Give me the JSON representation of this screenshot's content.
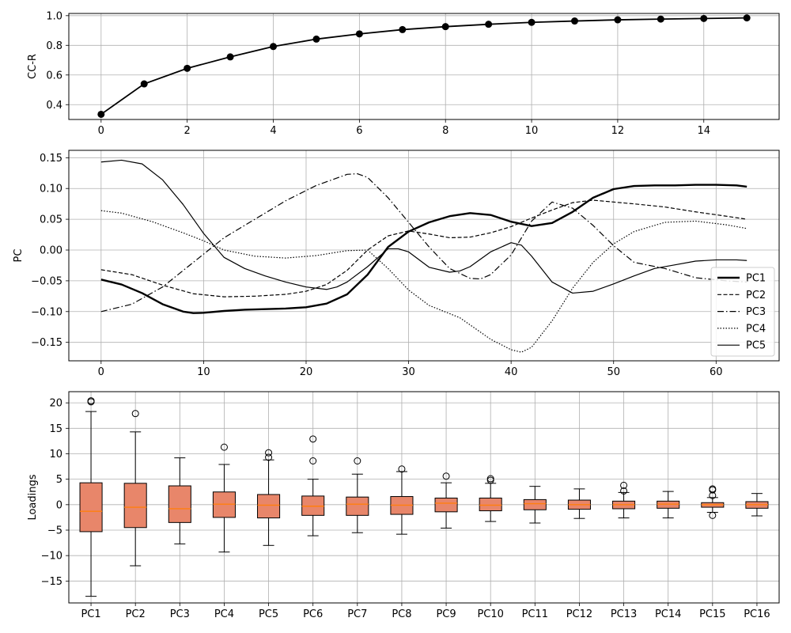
{
  "chart_data": [
    {
      "type": "line",
      "ylabel": "CC-R",
      "xlim": [
        -0.75,
        15.75
      ],
      "ylim": [
        0.3,
        1.015
      ],
      "xticks": [
        0,
        2,
        4,
        6,
        8,
        10,
        12,
        14
      ],
      "yticks": [
        0.4,
        0.6,
        0.8,
        1.0
      ],
      "ytick_labels": [
        "0.4",
        "0.6",
        "0.8",
        "1.0"
      ],
      "grid": true,
      "x": [
        0,
        1,
        2,
        3,
        4,
        5,
        6,
        7,
        8,
        9,
        10,
        11,
        12,
        13,
        14,
        15
      ],
      "y": [
        0.335,
        0.54,
        0.645,
        0.722,
        0.792,
        0.842,
        0.877,
        0.906,
        0.926,
        0.942,
        0.955,
        0.964,
        0.972,
        0.977,
        0.981,
        0.985
      ],
      "marker": "circle",
      "color": "#000000"
    },
    {
      "type": "line",
      "ylabel": "PC",
      "xlim": [
        -3.15,
        66.15
      ],
      "ylim": [
        -0.18,
        0.162
      ],
      "xticks": [
        0,
        10,
        20,
        30,
        40,
        50,
        60
      ],
      "yticks": [
        -0.15,
        -0.1,
        -0.05,
        0.0,
        0.05,
        0.1,
        0.15
      ],
      "ytick_labels": [
        "−0.15",
        "−0.10",
        "−0.05",
        "0.00",
        "0.05",
        "0.10",
        "0.15"
      ],
      "grid": true,
      "legend_position": "bottom-right",
      "series": [
        {
          "name": "PC1",
          "style": "solid",
          "width": 2.4,
          "x": [
            0,
            2,
            4,
            6,
            8,
            9,
            10,
            12,
            14,
            16,
            18,
            20,
            22,
            24,
            26,
            28,
            30,
            32,
            34,
            36,
            38,
            40,
            42,
            44,
            46,
            48,
            50,
            52,
            54,
            56,
            58,
            60,
            62,
            63
          ],
          "y": [
            -0.048,
            -0.056,
            -0.07,
            -0.088,
            -0.1,
            -0.1025,
            -0.102,
            -0.099,
            -0.097,
            -0.096,
            -0.095,
            -0.093,
            -0.087,
            -0.072,
            -0.04,
            0.005,
            0.03,
            0.045,
            0.055,
            0.06,
            0.057,
            0.046,
            0.039,
            0.044,
            0.062,
            0.085,
            0.099,
            0.104,
            0.105,
            0.105,
            0.106,
            0.106,
            0.105,
            0.103
          ]
        },
        {
          "name": "PC2",
          "style": "dashed",
          "width": 1.2,
          "x": [
            0,
            3,
            6,
            9,
            12,
            15,
            18,
            20,
            22,
            24,
            26,
            28,
            30,
            32,
            34,
            36,
            38,
            40,
            42,
            44,
            46,
            48,
            50,
            52,
            55,
            58,
            61,
            63
          ],
          "y": [
            -0.032,
            -0.04,
            -0.057,
            -0.071,
            -0.076,
            -0.075,
            -0.072,
            -0.067,
            -0.056,
            -0.033,
            0.0,
            0.023,
            0.031,
            0.026,
            0.02,
            0.021,
            0.028,
            0.038,
            0.052,
            0.065,
            0.077,
            0.081,
            0.078,
            0.075,
            0.07,
            0.062,
            0.055,
            0.05
          ]
        },
        {
          "name": "PC3",
          "style": "dashdot",
          "width": 1.2,
          "x": [
            0,
            3,
            6,
            9,
            12,
            15,
            18,
            21,
            24,
            25,
            26,
            28,
            30,
            32,
            34,
            36,
            37,
            38,
            40,
            42,
            44,
            46,
            48,
            50,
            52,
            55,
            58,
            61,
            63
          ],
          "y": [
            -0.1,
            -0.088,
            -0.06,
            -0.02,
            0.02,
            0.05,
            0.08,
            0.105,
            0.123,
            0.124,
            0.118,
            0.085,
            0.045,
            0.005,
            -0.03,
            -0.046,
            -0.047,
            -0.04,
            -0.008,
            0.047,
            0.078,
            0.068,
            0.04,
            0.007,
            -0.02,
            -0.03,
            -0.045,
            -0.05,
            -0.052
          ]
        },
        {
          "name": "PC4",
          "style": "dotted",
          "width": 1.2,
          "x": [
            0,
            2,
            5,
            8,
            10,
            12,
            15,
            18,
            21,
            24,
            26,
            28,
            30,
            32,
            35,
            38,
            40,
            41,
            42,
            44,
            46,
            48,
            50,
            52,
            55,
            58,
            61,
            63
          ],
          "y": [
            0.064,
            0.06,
            0.046,
            0.028,
            0.015,
            0.0,
            -0.01,
            -0.013,
            -0.009,
            -0.001,
            0.0,
            -0.03,
            -0.065,
            -0.09,
            -0.11,
            -0.145,
            -0.162,
            -0.166,
            -0.158,
            -0.115,
            -0.062,
            -0.02,
            0.01,
            0.03,
            0.045,
            0.047,
            0.041,
            0.035
          ]
        },
        {
          "name": "PC5",
          "style": "solid",
          "width": 1.2,
          "x": [
            0,
            2,
            4,
            6,
            8,
            10,
            12,
            14,
            16,
            18,
            20,
            22,
            23,
            24,
            26,
            28,
            29,
            30,
            32,
            34,
            35,
            36,
            38,
            40,
            41,
            42,
            44,
            46,
            48,
            50,
            52,
            54,
            56,
            58,
            60,
            62,
            63
          ],
          "y": [
            0.143,
            0.146,
            0.14,
            0.114,
            0.074,
            0.027,
            -0.012,
            -0.03,
            -0.042,
            -0.052,
            -0.06,
            -0.064,
            -0.06,
            -0.052,
            -0.027,
            0.002,
            0.002,
            -0.003,
            -0.028,
            -0.036,
            -0.034,
            -0.027,
            -0.003,
            0.012,
            0.008,
            -0.01,
            -0.052,
            -0.07,
            -0.067,
            -0.055,
            -0.042,
            -0.03,
            -0.024,
            -0.018,
            -0.016,
            -0.016,
            -0.017
          ]
        }
      ]
    },
    {
      "type": "box",
      "ylabel": "Loadings",
      "ylim": [
        -19.3,
        22.2
      ],
      "yticks": [
        -15,
        -10,
        -5,
        0,
        5,
        10,
        15,
        20
      ],
      "ytick_labels": [
        "−15",
        "−10",
        "−5",
        "0",
        "5",
        "10",
        "15",
        "20"
      ],
      "grid": true,
      "box_color": "#e8866a",
      "median_color": "#ff7f0e",
      "categories": [
        "PC1",
        "PC2",
        "PC3",
        "PC4",
        "PC5",
        "PC6",
        "PC7",
        "PC8",
        "PC9",
        "PC10",
        "PC11",
        "PC12",
        "PC13",
        "PC14",
        "PC15",
        "PC16"
      ],
      "boxes": [
        {
          "whislo": -18.0,
          "q1": -5.3,
          "med": -1.3,
          "q3": 4.3,
          "whishi": 18.3,
          "fliers": [
            20.2,
            20.4
          ]
        },
        {
          "whislo": -12.0,
          "q1": -4.5,
          "med": -0.5,
          "q3": 4.2,
          "whishi": 14.3,
          "fliers": [
            17.9
          ]
        },
        {
          "whislo": -7.7,
          "q1": -3.5,
          "med": -0.8,
          "q3": 3.7,
          "whishi": 9.2,
          "fliers": []
        },
        {
          "whislo": -9.3,
          "q1": -2.5,
          "med": 0.1,
          "q3": 2.5,
          "whishi": 7.9,
          "fliers": [
            11.3
          ]
        },
        {
          "whislo": -8.0,
          "q1": -2.6,
          "med": -0.1,
          "q3": 2.0,
          "whishi": 8.8,
          "fliers": [
            9.3,
            10.2
          ]
        },
        {
          "whislo": -6.1,
          "q1": -2.1,
          "med": -0.3,
          "q3": 1.7,
          "whishi": 5.0,
          "fliers": [
            8.6,
            12.9
          ]
        },
        {
          "whislo": -5.5,
          "q1": -2.1,
          "med": 0.1,
          "q3": 1.5,
          "whishi": 6.0,
          "fliers": [
            8.6
          ]
        },
        {
          "whislo": -5.8,
          "q1": -1.9,
          "med": -0.1,
          "q3": 1.6,
          "whishi": 6.5,
          "fliers": [
            7.0
          ]
        },
        {
          "whislo": -4.6,
          "q1": -1.4,
          "med": 0.3,
          "q3": 1.3,
          "whishi": 4.3,
          "fliers": [
            5.6
          ]
        },
        {
          "whislo": -3.3,
          "q1": -1.2,
          "med": -0.1,
          "q3": 1.3,
          "whishi": 4.2,
          "fliers": [
            4.8,
            5.1
          ]
        },
        {
          "whislo": -3.6,
          "q1": -1.0,
          "med": 0.2,
          "q3": 1.0,
          "whishi": 3.6,
          "fliers": []
        },
        {
          "whislo": -2.7,
          "q1": -0.9,
          "med": 0.0,
          "q3": 0.9,
          "whishi": 3.1,
          "fliers": []
        },
        {
          "whislo": -2.6,
          "q1": -0.8,
          "med": 0.0,
          "q3": 0.7,
          "whishi": 2.4,
          "fliers": [
            2.7,
            3.8
          ]
        },
        {
          "whislo": -2.6,
          "q1": -0.7,
          "med": 0.1,
          "q3": 0.7,
          "whishi": 2.6,
          "fliers": []
        },
        {
          "whislo": -1.5,
          "q1": -0.5,
          "med": 0.0,
          "q3": 0.4,
          "whishi": 1.4,
          "fliers": [
            -2.1,
            1.8,
            2.9,
            3.1
          ]
        },
        {
          "whislo": -2.2,
          "q1": -0.7,
          "med": 0.0,
          "q3": 0.6,
          "whishi": 2.2,
          "fliers": []
        }
      ]
    }
  ]
}
